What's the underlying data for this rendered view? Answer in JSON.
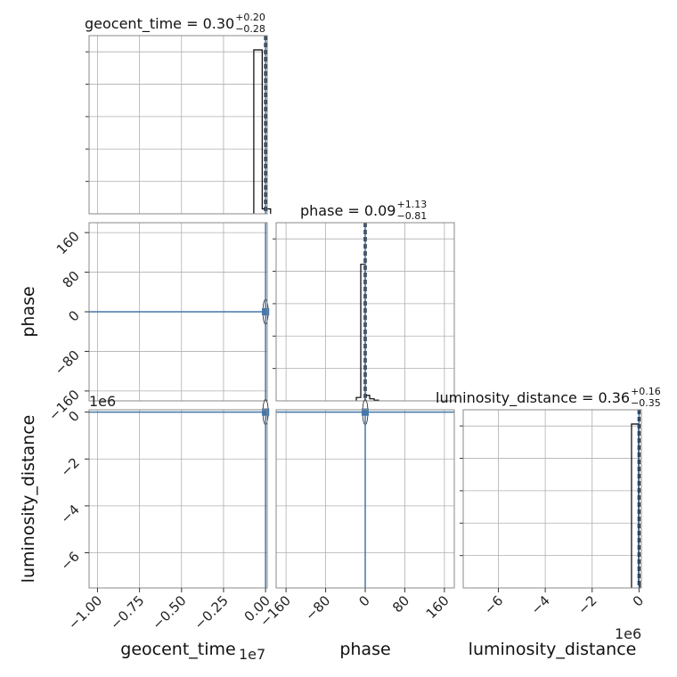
{
  "chart_data": {
    "type": "corner",
    "parameters": [
      "geocent_time",
      "phase",
      "luminosity_distance"
    ],
    "axis_labels": {
      "geocent_time": "geocent_time",
      "phase": "phase",
      "luminosity_distance": "luminosity_distance"
    },
    "titles": [
      {
        "param": "geocent_time",
        "text": "geocent_time = 0.30",
        "plus": "+0.20",
        "minus": "−0.28"
      },
      {
        "param": "phase",
        "text": "phase = 0.09",
        "plus": "+1.13",
        "minus": "−0.81"
      },
      {
        "param": "luminosity_distance",
        "text": "luminosity_distance = 0.36",
        "plus": "+0.16",
        "minus": "−0.35"
      }
    ],
    "ranges": {
      "geocent_time": [
        -10500000,
        100000
      ],
      "phase": [
        -180,
        180
      ],
      "luminosity_distance": [
        -7500000,
        100000
      ]
    },
    "ticks": {
      "geocent_time": [
        {
          "v": -10000000,
          "label": "−1.00"
        },
        {
          "v": -7500000,
          "label": "−0.75"
        },
        {
          "v": -5000000,
          "label": "−0.50"
        },
        {
          "v": -2500000,
          "label": "−0.25"
        },
        {
          "v": 0,
          "label": "0.00"
        }
      ],
      "phase": [
        {
          "v": -160,
          "label": "−160"
        },
        {
          "v": -80,
          "label": "−80"
        },
        {
          "v": 0,
          "label": "0"
        },
        {
          "v": 80,
          "label": "80"
        },
        {
          "v": 160,
          "label": "160"
        }
      ],
      "luminosity_distance": [
        {
          "v": -6000000,
          "label": "−6"
        },
        {
          "v": -4000000,
          "label": "−4"
        },
        {
          "v": -2000000,
          "label": "−2"
        },
        {
          "v": 0,
          "label": "0"
        }
      ]
    },
    "offset_labels": {
      "geocent_time": "1e7",
      "luminosity_distance": "1e6"
    },
    "histograms": {
      "geocent_time": {
        "edges": [
          -700000,
          -200000,
          300000
        ],
        "counts": [
          1.0,
          0.03
        ],
        "ylim": [
          0,
          1.0
        ]
      },
      "phase": {
        "edges": [
          -18,
          -9,
          0,
          9,
          18,
          27
        ],
        "counts": [
          0.025,
          1.0,
          0.04,
          0.015,
          0.005
        ],
        "ylim": [
          0,
          1.2
        ]
      },
      "luminosity_distance": {
        "edges": [
          -320000,
          -20000,
          40000
        ],
        "counts": [
          1.0,
          0.03
        ],
        "ylim": [
          0,
          1.0
        ]
      }
    },
    "median_lines": {
      "geocent_time": 0.3,
      "phase": 0.09,
      "luminosity_distance": 0.36
    },
    "quantile_lines": {
      "geocent_time": [
        0.02,
        0.5
      ],
      "phase": [
        -0.72,
        1.22
      ],
      "luminosity_distance": [
        0.01,
        0.52
      ]
    },
    "truths": {
      "geocent_time": 0,
      "phase": 0,
      "luminosity_distance": 0
    },
    "truth_color": "#4477aa",
    "hist_color": "#000000",
    "grid": true
  }
}
